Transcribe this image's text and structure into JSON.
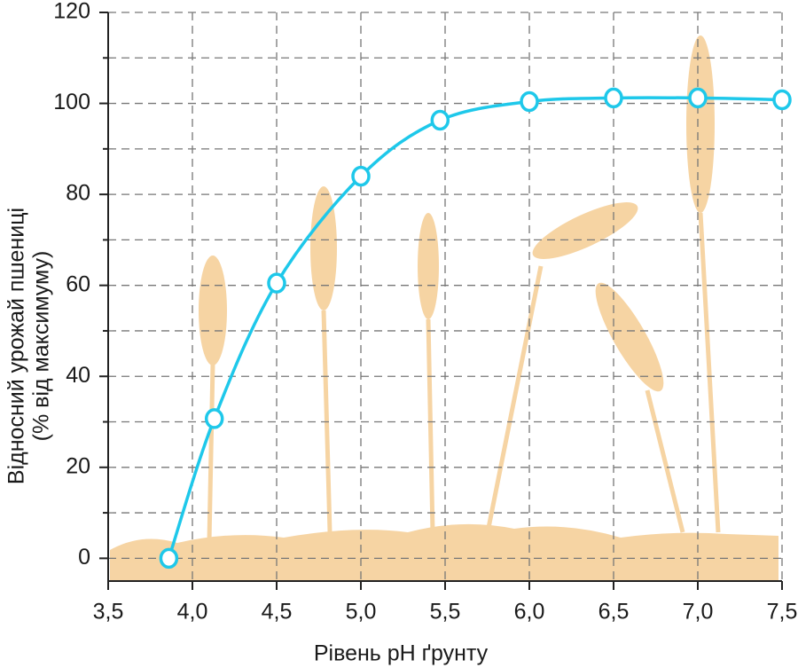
{
  "chart_data": {
    "type": "line",
    "y_label_lines": [
      "Відносний урожай пшениці",
      "(% від максимуму)"
    ],
    "x_label": "Рівень рН ґрунту",
    "x": [
      3.86,
      4.13,
      4.5,
      5.0,
      5.47,
      6.0,
      6.5,
      7.0,
      7.5
    ],
    "series": [
      {
        "color": "#1ec8ea",
        "values": [
          0,
          30.7,
          60.5,
          84,
          96.3,
          100.4,
          101.2,
          101.2,
          100.8
        ]
      }
    ],
    "xlim": [
      3.5,
      7.5
    ],
    "xticks": [
      {
        "value": 3.5,
        "label": "3,5"
      },
      {
        "value": 4.0,
        "label": "4,0"
      },
      {
        "value": 4.5,
        "label": "4,5"
      },
      {
        "value": 5.0,
        "label": "5,0"
      },
      {
        "value": 5.5,
        "label": "5,5"
      },
      {
        "value": 6.0,
        "label": "6,0"
      },
      {
        "value": 6.5,
        "label": "6,5"
      },
      {
        "value": 7.0,
        "label": "7,0"
      },
      {
        "value": 7.5,
        "label": "7,5"
      }
    ],
    "ylim": [
      -5,
      120
    ],
    "yticks": [
      0,
      20,
      40,
      60,
      80,
      100,
      120
    ],
    "y_minor_ticks": [
      10,
      30,
      50,
      70,
      90,
      110
    ],
    "grid": true
  }
}
